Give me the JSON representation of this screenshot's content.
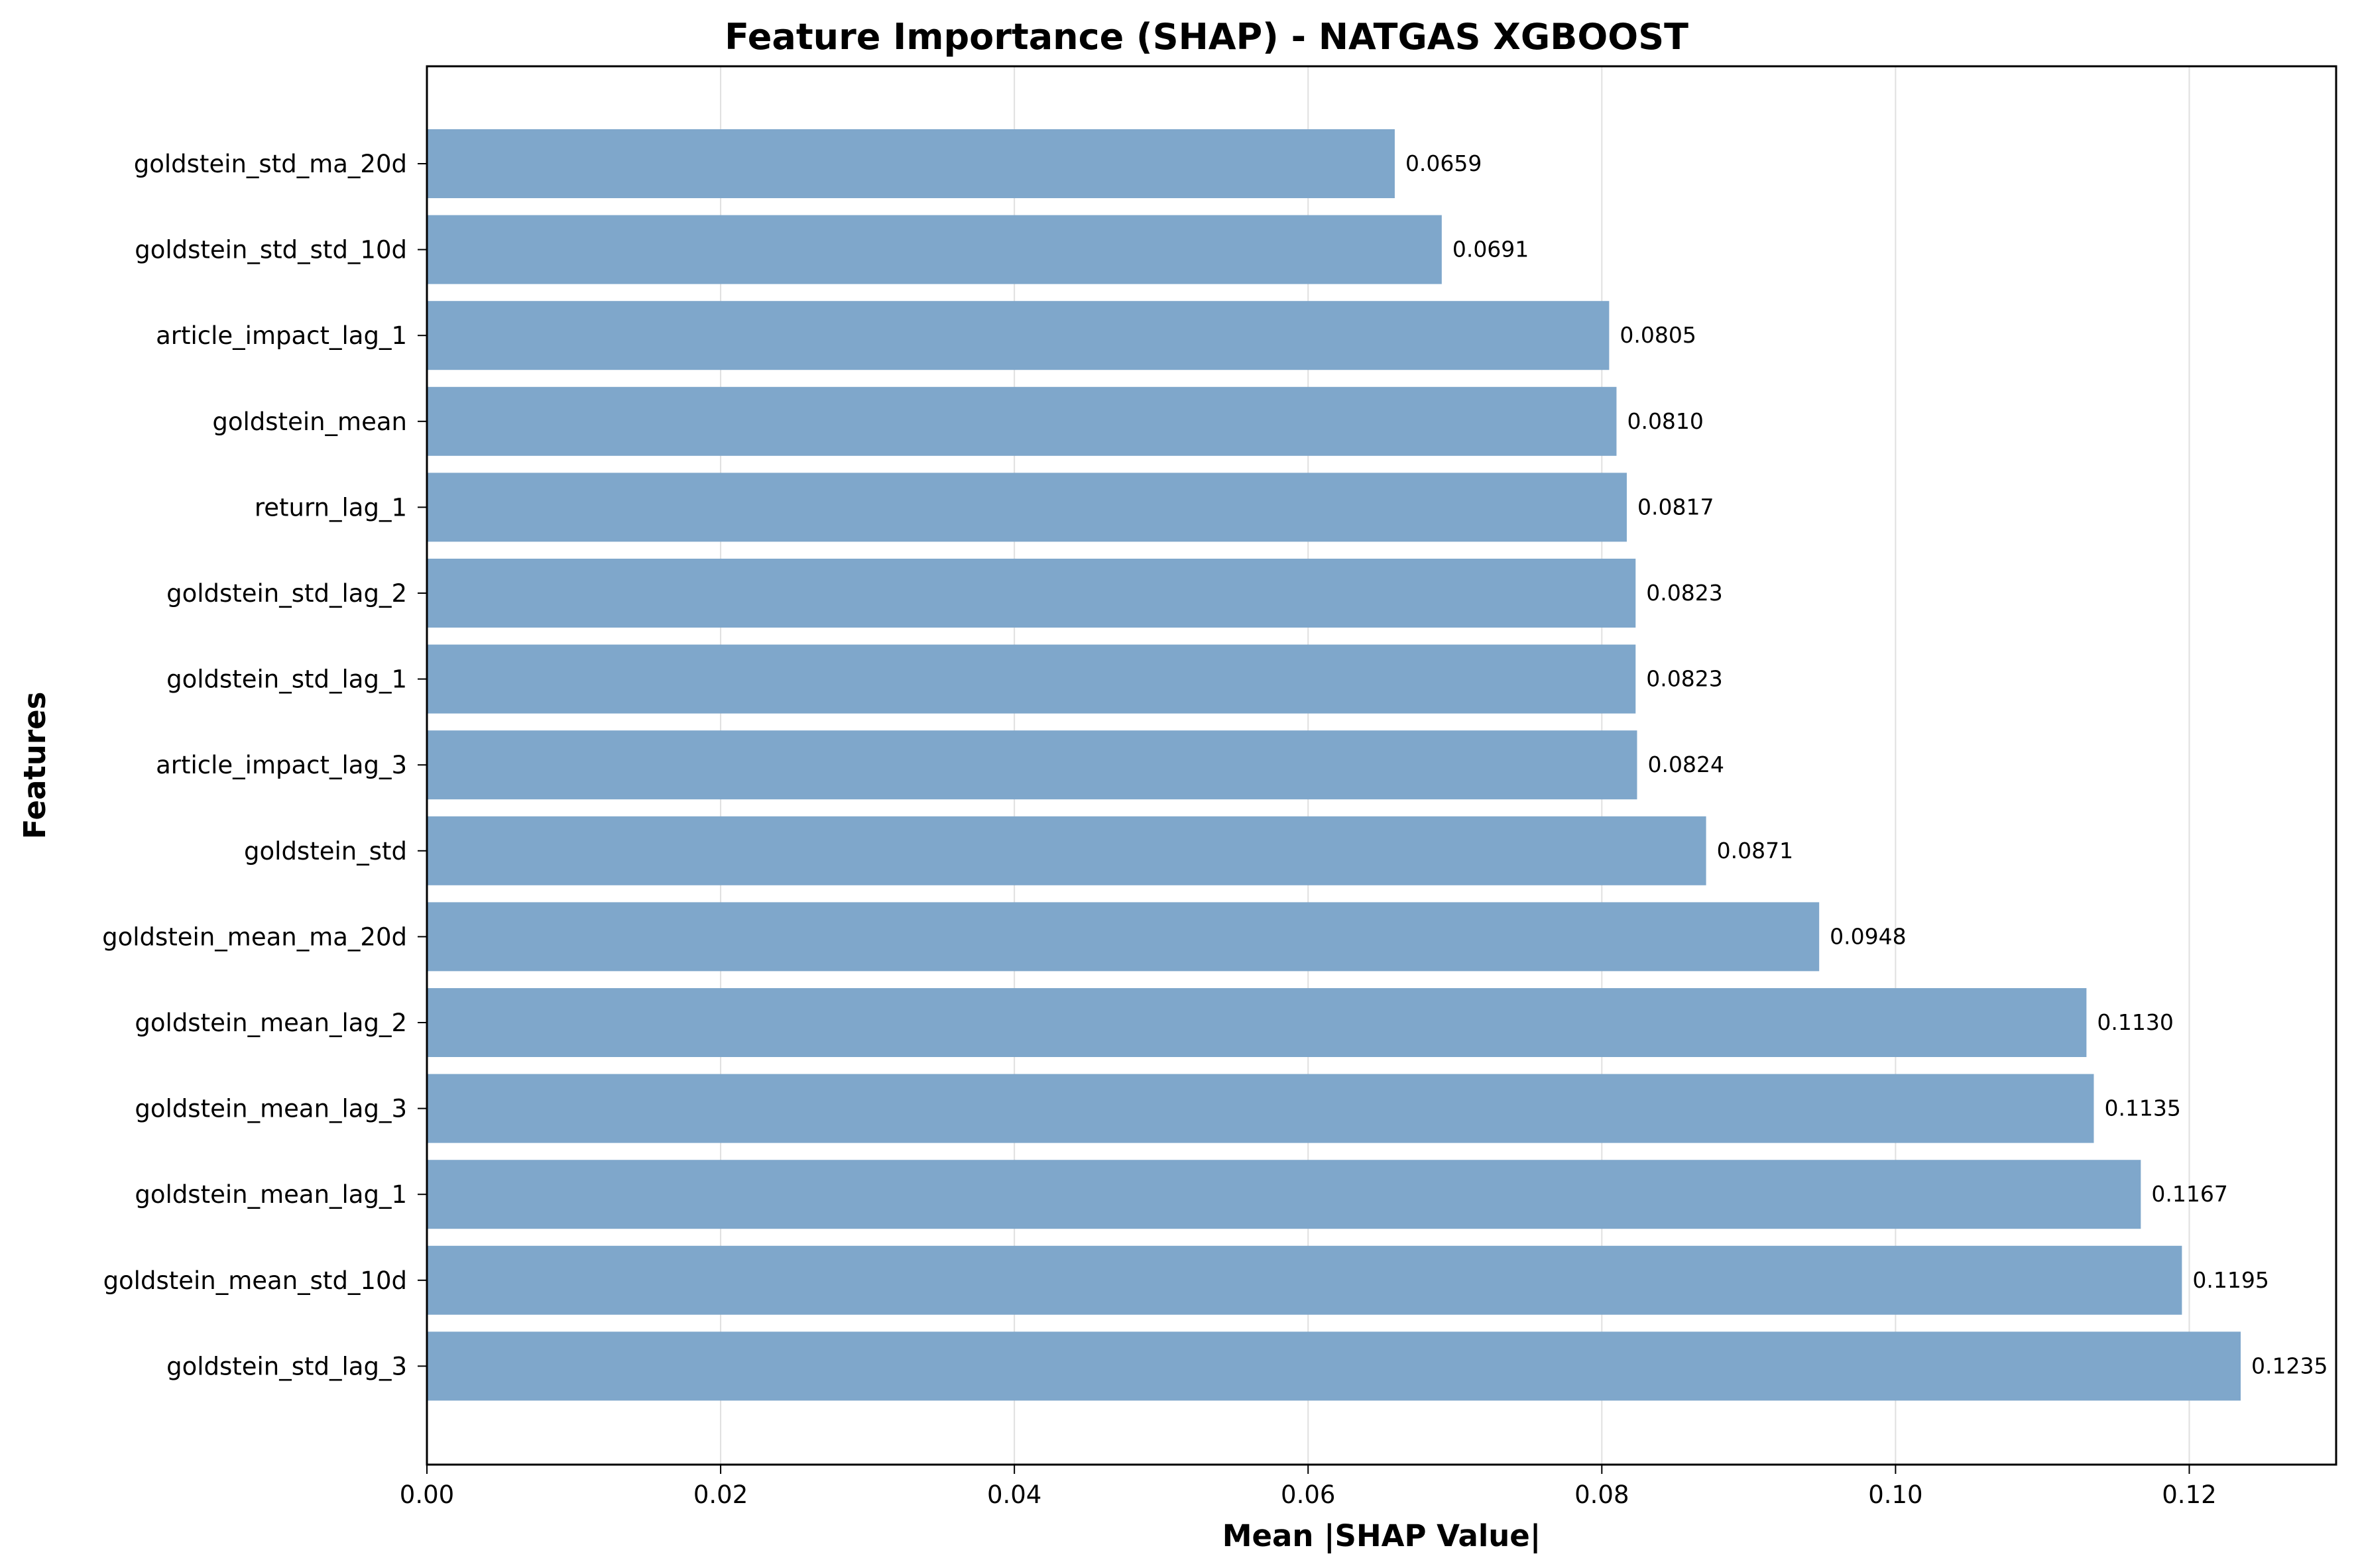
{
  "chart_data": {
    "type": "bar",
    "orientation": "horizontal",
    "title": "Feature Importance (SHAP) - NATGAS XGBOOST",
    "xlabel": "Mean |SHAP Value|",
    "ylabel": "Features",
    "xlim": [
      0,
      0.13
    ],
    "x_ticks": [
      "0.00",
      "0.02",
      "0.04",
      "0.06",
      "0.08",
      "0.10",
      "0.12"
    ],
    "grid": "vertical",
    "bar_color": "#7fa7cb",
    "categories": [
      "goldstein_std_ma_20d",
      "goldstein_std_std_10d",
      "article_impact_lag_1",
      "goldstein_mean",
      "return_lag_1",
      "goldstein_std_lag_2",
      "goldstein_std_lag_1",
      "article_impact_lag_3",
      "goldstein_std",
      "goldstein_mean_ma_20d",
      "goldstein_mean_lag_2",
      "goldstein_mean_lag_3",
      "goldstein_mean_lag_1",
      "goldstein_mean_std_10d",
      "goldstein_std_lag_3"
    ],
    "values": [
      0.0659,
      0.0691,
      0.0805,
      0.081,
      0.0817,
      0.0823,
      0.0823,
      0.0824,
      0.0871,
      0.0948,
      0.113,
      0.1135,
      0.1167,
      0.1195,
      0.1235
    ],
    "value_labels": [
      "0.0659",
      "0.0691",
      "0.0805",
      "0.0810",
      "0.0817",
      "0.0823",
      "0.0823",
      "0.0824",
      "0.0871",
      "0.0948",
      "0.1130",
      "0.1135",
      "0.1167",
      "0.1195",
      "0.1235"
    ]
  }
}
